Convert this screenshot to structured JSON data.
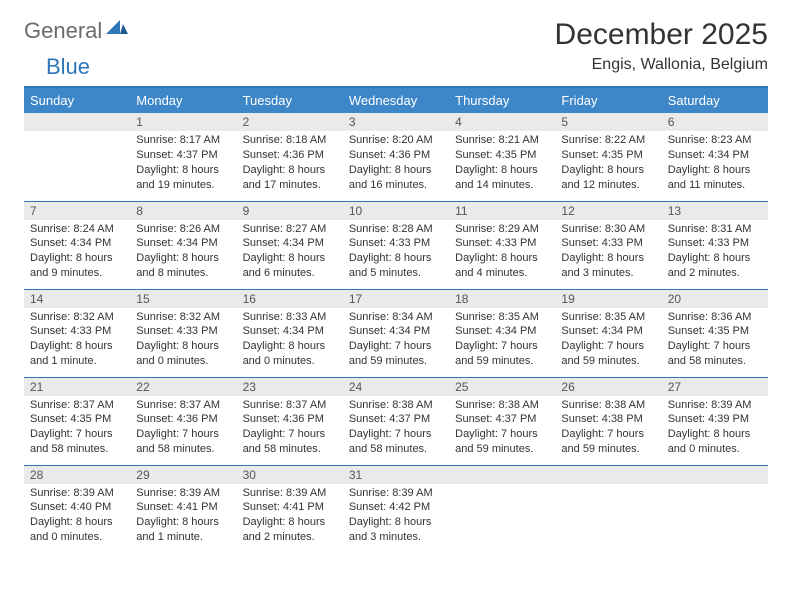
{
  "brand": {
    "part1": "General",
    "part2": "Blue"
  },
  "title": "December 2025",
  "location": "Engis, Wallonia, Belgium",
  "colors": {
    "accent": "#2f76b8",
    "header_bg": "#3d87c9",
    "daynum_bg": "#e9eaec",
    "text": "#333333",
    "logo_gray": "#6b6b6b"
  },
  "day_headers": [
    "Sunday",
    "Monday",
    "Tuesday",
    "Wednesday",
    "Thursday",
    "Friday",
    "Saturday"
  ],
  "weeks": [
    [
      {
        "n": "",
        "sr": "",
        "ss": "",
        "dl": ""
      },
      {
        "n": "1",
        "sr": "Sunrise: 8:17 AM",
        "ss": "Sunset: 4:37 PM",
        "dl": "Daylight: 8 hours and 19 minutes."
      },
      {
        "n": "2",
        "sr": "Sunrise: 8:18 AM",
        "ss": "Sunset: 4:36 PM",
        "dl": "Daylight: 8 hours and 17 minutes."
      },
      {
        "n": "3",
        "sr": "Sunrise: 8:20 AM",
        "ss": "Sunset: 4:36 PM",
        "dl": "Daylight: 8 hours and 16 minutes."
      },
      {
        "n": "4",
        "sr": "Sunrise: 8:21 AM",
        "ss": "Sunset: 4:35 PM",
        "dl": "Daylight: 8 hours and 14 minutes."
      },
      {
        "n": "5",
        "sr": "Sunrise: 8:22 AM",
        "ss": "Sunset: 4:35 PM",
        "dl": "Daylight: 8 hours and 12 minutes."
      },
      {
        "n": "6",
        "sr": "Sunrise: 8:23 AM",
        "ss": "Sunset: 4:34 PM",
        "dl": "Daylight: 8 hours and 11 minutes."
      }
    ],
    [
      {
        "n": "7",
        "sr": "Sunrise: 8:24 AM",
        "ss": "Sunset: 4:34 PM",
        "dl": "Daylight: 8 hours and 9 minutes."
      },
      {
        "n": "8",
        "sr": "Sunrise: 8:26 AM",
        "ss": "Sunset: 4:34 PM",
        "dl": "Daylight: 8 hours and 8 minutes."
      },
      {
        "n": "9",
        "sr": "Sunrise: 8:27 AM",
        "ss": "Sunset: 4:34 PM",
        "dl": "Daylight: 8 hours and 6 minutes."
      },
      {
        "n": "10",
        "sr": "Sunrise: 8:28 AM",
        "ss": "Sunset: 4:33 PM",
        "dl": "Daylight: 8 hours and 5 minutes."
      },
      {
        "n": "11",
        "sr": "Sunrise: 8:29 AM",
        "ss": "Sunset: 4:33 PM",
        "dl": "Daylight: 8 hours and 4 minutes."
      },
      {
        "n": "12",
        "sr": "Sunrise: 8:30 AM",
        "ss": "Sunset: 4:33 PM",
        "dl": "Daylight: 8 hours and 3 minutes."
      },
      {
        "n": "13",
        "sr": "Sunrise: 8:31 AM",
        "ss": "Sunset: 4:33 PM",
        "dl": "Daylight: 8 hours and 2 minutes."
      }
    ],
    [
      {
        "n": "14",
        "sr": "Sunrise: 8:32 AM",
        "ss": "Sunset: 4:33 PM",
        "dl": "Daylight: 8 hours and 1 minute."
      },
      {
        "n": "15",
        "sr": "Sunrise: 8:32 AM",
        "ss": "Sunset: 4:33 PM",
        "dl": "Daylight: 8 hours and 0 minutes."
      },
      {
        "n": "16",
        "sr": "Sunrise: 8:33 AM",
        "ss": "Sunset: 4:34 PM",
        "dl": "Daylight: 8 hours and 0 minutes."
      },
      {
        "n": "17",
        "sr": "Sunrise: 8:34 AM",
        "ss": "Sunset: 4:34 PM",
        "dl": "Daylight: 7 hours and 59 minutes."
      },
      {
        "n": "18",
        "sr": "Sunrise: 8:35 AM",
        "ss": "Sunset: 4:34 PM",
        "dl": "Daylight: 7 hours and 59 minutes."
      },
      {
        "n": "19",
        "sr": "Sunrise: 8:35 AM",
        "ss": "Sunset: 4:34 PM",
        "dl": "Daylight: 7 hours and 59 minutes."
      },
      {
        "n": "20",
        "sr": "Sunrise: 8:36 AM",
        "ss": "Sunset: 4:35 PM",
        "dl": "Daylight: 7 hours and 58 minutes."
      }
    ],
    [
      {
        "n": "21",
        "sr": "Sunrise: 8:37 AM",
        "ss": "Sunset: 4:35 PM",
        "dl": "Daylight: 7 hours and 58 minutes."
      },
      {
        "n": "22",
        "sr": "Sunrise: 8:37 AM",
        "ss": "Sunset: 4:36 PM",
        "dl": "Daylight: 7 hours and 58 minutes."
      },
      {
        "n": "23",
        "sr": "Sunrise: 8:37 AM",
        "ss": "Sunset: 4:36 PM",
        "dl": "Daylight: 7 hours and 58 minutes."
      },
      {
        "n": "24",
        "sr": "Sunrise: 8:38 AM",
        "ss": "Sunset: 4:37 PM",
        "dl": "Daylight: 7 hours and 58 minutes."
      },
      {
        "n": "25",
        "sr": "Sunrise: 8:38 AM",
        "ss": "Sunset: 4:37 PM",
        "dl": "Daylight: 7 hours and 59 minutes."
      },
      {
        "n": "26",
        "sr": "Sunrise: 8:38 AM",
        "ss": "Sunset: 4:38 PM",
        "dl": "Daylight: 7 hours and 59 minutes."
      },
      {
        "n": "27",
        "sr": "Sunrise: 8:39 AM",
        "ss": "Sunset: 4:39 PM",
        "dl": "Daylight: 8 hours and 0 minutes."
      }
    ],
    [
      {
        "n": "28",
        "sr": "Sunrise: 8:39 AM",
        "ss": "Sunset: 4:40 PM",
        "dl": "Daylight: 8 hours and 0 minutes."
      },
      {
        "n": "29",
        "sr": "Sunrise: 8:39 AM",
        "ss": "Sunset: 4:41 PM",
        "dl": "Daylight: 8 hours and 1 minute."
      },
      {
        "n": "30",
        "sr": "Sunrise: 8:39 AM",
        "ss": "Sunset: 4:41 PM",
        "dl": "Daylight: 8 hours and 2 minutes."
      },
      {
        "n": "31",
        "sr": "Sunrise: 8:39 AM",
        "ss": "Sunset: 4:42 PM",
        "dl": "Daylight: 8 hours and 3 minutes."
      },
      {
        "n": "",
        "sr": "",
        "ss": "",
        "dl": ""
      },
      {
        "n": "",
        "sr": "",
        "ss": "",
        "dl": ""
      },
      {
        "n": "",
        "sr": "",
        "ss": "",
        "dl": ""
      }
    ]
  ]
}
